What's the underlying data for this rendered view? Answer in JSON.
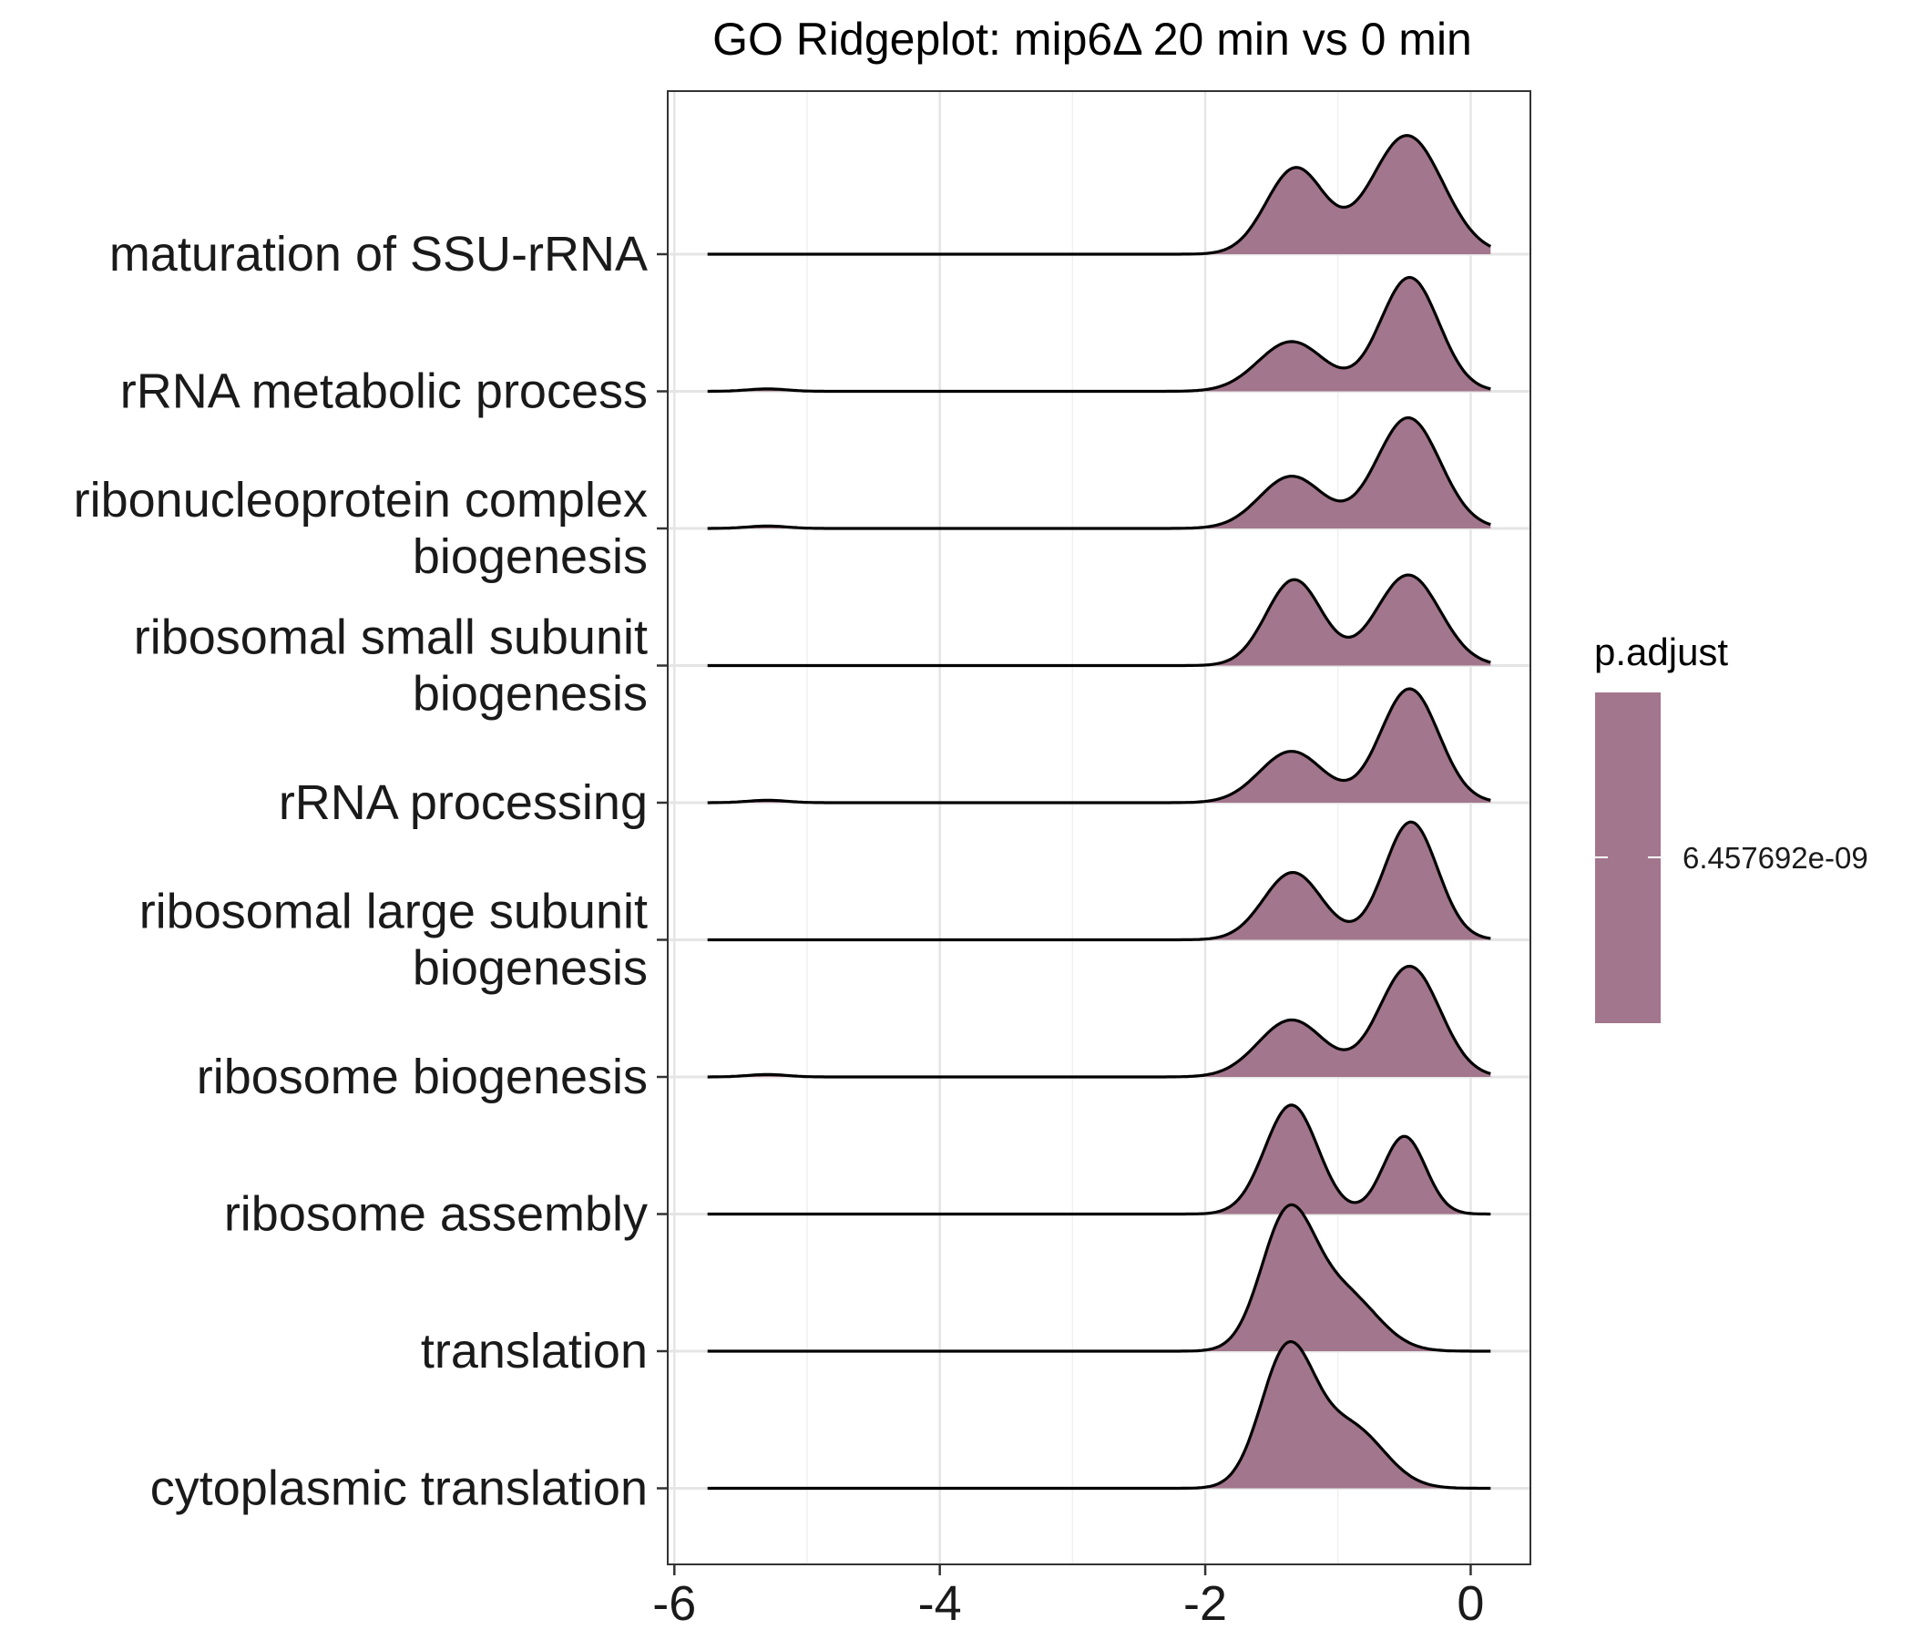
{
  "chart_data": {
    "type": "ridgeline",
    "title": "GO Ridgeplot: mip6Δ 20 min vs 0 min",
    "xlabel": "",
    "ylabel": "",
    "xlim": [
      -6.05,
      0.45
    ],
    "x_ticks": [
      -6,
      -4,
      -2,
      0
    ],
    "x_tick_labels": [
      "-6",
      "-4",
      "-2",
      "0"
    ],
    "grid": true,
    "fill_color": "#a2768c",
    "categories": [
      "maturation of SSU-rRNA",
      "rRNA metabolic process",
      "ribonucleoprotein complex\nbiogenesis",
      "ribosomal small subunit\nbiogenesis",
      "rRNA processing",
      "ribosomal large subunit\nbiogenesis",
      "ribosome biogenesis",
      "ribosome assembly",
      "translation",
      "cytoplasmic translation"
    ],
    "series": [
      {
        "label": "maturation of SSU-rRNA",
        "x_range": [
          -5.75,
          0.15
        ],
        "components": [
          {
            "m": -1.32,
            "s": 0.22,
            "h": 1.07
          },
          {
            "m": -0.48,
            "s": 0.27,
            "h": 1.48
          }
        ]
      },
      {
        "label": "rRNA metabolic process",
        "x_range": [
          -5.75,
          0.15
        ],
        "components": [
          {
            "m": -5.3,
            "s": 0.15,
            "h": 0.03
          },
          {
            "m": -1.35,
            "s": 0.25,
            "h": 0.62
          },
          {
            "m": -0.46,
            "s": 0.22,
            "h": 1.42
          }
        ]
      },
      {
        "label": "ribonucleoprotein complex\nbiogenesis",
        "x_range": [
          -5.75,
          0.15
        ],
        "components": [
          {
            "m": -5.3,
            "s": 0.15,
            "h": 0.03
          },
          {
            "m": -1.35,
            "s": 0.24,
            "h": 0.65
          },
          {
            "m": -0.47,
            "s": 0.24,
            "h": 1.38
          }
        ]
      },
      {
        "label": "ribosomal small subunit\nbiogenesis",
        "x_range": [
          -5.75,
          0.15
        ],
        "components": [
          {
            "m": -1.33,
            "s": 0.21,
            "h": 1.07
          },
          {
            "m": -0.47,
            "s": 0.24,
            "h": 1.13
          }
        ]
      },
      {
        "label": "rRNA processing",
        "x_range": [
          -5.75,
          0.15
        ],
        "components": [
          {
            "m": -5.3,
            "s": 0.15,
            "h": 0.03
          },
          {
            "m": -1.35,
            "s": 0.24,
            "h": 0.64
          },
          {
            "m": -0.46,
            "s": 0.22,
            "h": 1.42
          }
        ]
      },
      {
        "label": "ribosomal large subunit\nbiogenesis",
        "x_range": [
          -5.75,
          0.15
        ],
        "components": [
          {
            "m": -1.34,
            "s": 0.22,
            "h": 0.84
          },
          {
            "m": -0.45,
            "s": 0.2,
            "h": 1.47
          }
        ]
      },
      {
        "label": "ribosome biogenesis",
        "x_range": [
          -5.75,
          0.15
        ],
        "components": [
          {
            "m": -5.3,
            "s": 0.15,
            "h": 0.03
          },
          {
            "m": -1.35,
            "s": 0.25,
            "h": 0.71
          },
          {
            "m": -0.46,
            "s": 0.23,
            "h": 1.38
          }
        ]
      },
      {
        "label": "ribosome assembly",
        "x_range": [
          -5.75,
          0.15
        ],
        "components": [
          {
            "m": -1.35,
            "s": 0.2,
            "h": 1.36
          },
          {
            "m": -0.5,
            "s": 0.16,
            "h": 0.97
          }
        ]
      },
      {
        "label": "translation",
        "x_range": [
          -5.75,
          0.15
        ],
        "components": [
          {
            "m": -1.38,
            "s": 0.2,
            "h": 1.65
          },
          {
            "m": -0.95,
            "s": 0.25,
            "h": 0.7
          }
        ]
      },
      {
        "label": "cytoplasmic translation",
        "x_range": [
          -5.75,
          0.15
        ],
        "components": [
          {
            "m": -1.38,
            "s": 0.2,
            "h": 1.7
          },
          {
            "m": -0.9,
            "s": 0.25,
            "h": 0.75
          }
        ]
      }
    ],
    "legend": {
      "title": "p.adjust",
      "label": "6.457692e-09",
      "position": "right"
    }
  }
}
